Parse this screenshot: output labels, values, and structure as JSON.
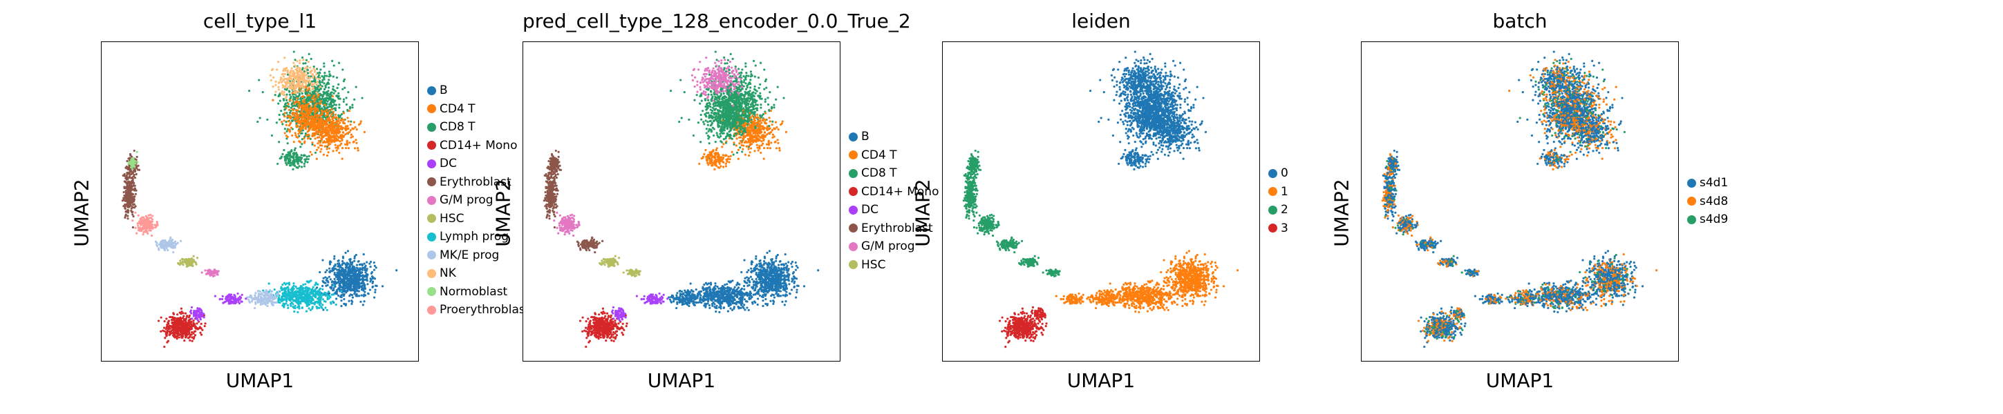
{
  "chart_data": [
    {
      "type": "scatter",
      "title": "cell_type_l1",
      "xlabel": "UMAP1",
      "ylabel": "UMAP2",
      "legend_position": "right",
      "grid": false,
      "categories": [
        "B",
        "CD4 T",
        "CD8 T",
        "CD14+ Mono",
        "DC",
        "Erythroblast",
        "G/M prog",
        "HSC",
        "Lymph prog",
        "MK/E prog",
        "NK",
        "Normoblast",
        "Proerythroblast"
      ],
      "colors": [
        "#1f77b4",
        "#ff7f0e",
        "#279e68",
        "#d62728",
        "#aa40fc",
        "#8c564b",
        "#e377c2",
        "#b5bd61",
        "#17becf",
        "#aec7e8",
        "#ffbb78",
        "#98df8a",
        "#ff9896"
      ],
      "legend_labels": [
        "B",
        "CD4 T",
        "CD8 T",
        "CD14+ Mono",
        "DC",
        "Erythroblast",
        "G/M prog",
        "HSC",
        "Lymph prog",
        "MK/E prog",
        "NK",
        "Normoblast",
        "Proerythroblas"
      ]
    },
    {
      "type": "scatter",
      "title": "pred_cell_type_128_encoder_0.0_True_2",
      "xlabel": "UMAP1",
      "ylabel": "UMAP2",
      "legend_position": "right",
      "grid": false,
      "categories": [
        "B",
        "CD4 T",
        "CD8 T",
        "CD14+ Mono",
        "DC",
        "Erythroblast",
        "G/M prog",
        "HSC"
      ],
      "colors": [
        "#1f77b4",
        "#ff7f0e",
        "#279e68",
        "#d62728",
        "#aa40fc",
        "#8c564b",
        "#e377c2",
        "#b5bd61"
      ],
      "legend_labels": [
        "B",
        "CD4 T",
        "CD8 T",
        "CD14+ Mono",
        "DC",
        "Erythroblast",
        "G/M prog",
        "HSC"
      ]
    },
    {
      "type": "scatter",
      "title": "leiden",
      "xlabel": "UMAP1",
      "ylabel": "UMAP2",
      "legend_position": "right",
      "grid": false,
      "categories": [
        "0",
        "1",
        "2",
        "3"
      ],
      "colors": [
        "#1f77b4",
        "#ff7f0e",
        "#279e68",
        "#d62728"
      ],
      "legend_labels": [
        "0",
        "1",
        "2",
        "3"
      ]
    },
    {
      "type": "scatter",
      "title": "batch",
      "xlabel": "UMAP1",
      "ylabel": "UMAP2",
      "legend_position": "right",
      "grid": false,
      "categories": [
        "s4d1",
        "s4d8",
        "s4d9"
      ],
      "colors": [
        "#1f77b4",
        "#ff7f0e",
        "#279e68"
      ],
      "legend_labels": [
        "s4d1",
        "s4d8",
        "s4d9"
      ]
    }
  ]
}
